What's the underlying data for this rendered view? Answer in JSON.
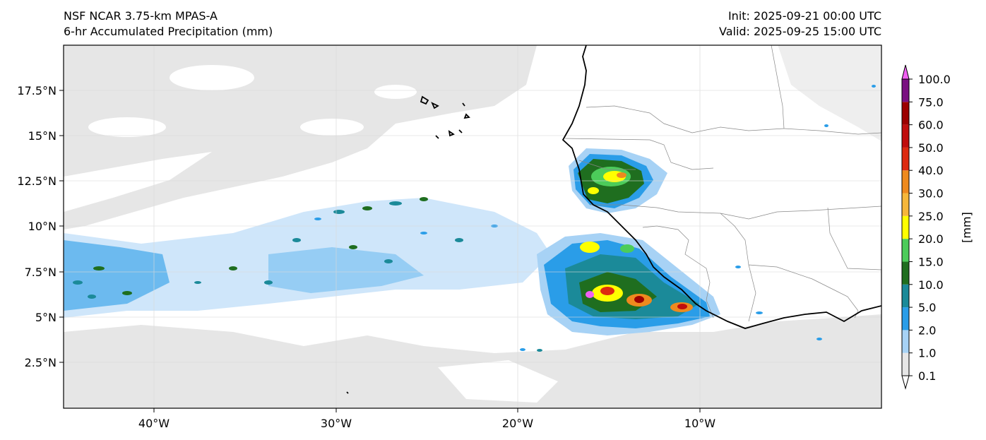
{
  "header": {
    "model": "NSF NCAR 3.75-km MPAS-A",
    "field": "6-hr Accumulated Precipitation (mm)",
    "init": "Init: 2025-09-21 00:00 UTC",
    "valid": "Valid: 2025-09-25 15:00 UTC"
  },
  "map": {
    "lat_ticks": [
      "17.5°N",
      "15°N",
      "12.5°N",
      "10°N",
      "7.5°N",
      "5°N",
      "2.5°N"
    ],
    "lon_ticks": [
      "40°W",
      "30°W",
      "20°W",
      "10°W"
    ]
  },
  "colorbar": {
    "unit_label": "[mm]",
    "levels": [
      "0.1",
      "1.0",
      "2.0",
      "5.0",
      "10.0",
      "15.0",
      "20.0",
      "25.0",
      "30.0",
      "40.0",
      "50.0",
      "60.0",
      "75.0",
      "100.0"
    ],
    "colors": [
      "#e6e6e6",
      "#a7d2f5",
      "#2a9de8",
      "#1b8a99",
      "#1f6e1f",
      "#4ccc5a",
      "#ffff00",
      "#f6b73a",
      "#ee8a1e",
      "#dd2a10",
      "#c00d0d",
      "#9c0000",
      "#7a1081",
      "#f05ff2"
    ]
  }
}
